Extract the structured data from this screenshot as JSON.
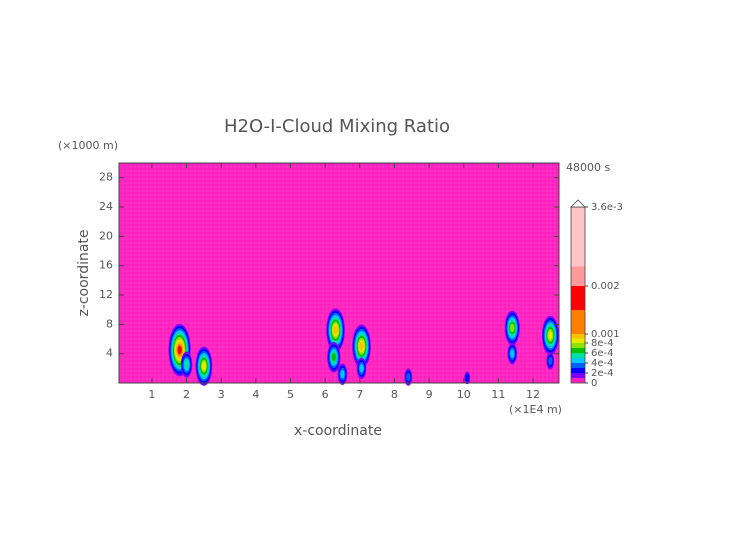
{
  "chart_data": {
    "type": "contour",
    "title": "H2O-I-Cloud Mixing Ratio",
    "y_unit": "(×1000 m)",
    "x_unit": "(×1E4 m)",
    "time_label": "48000 s",
    "ylabel": "z-coordinate",
    "xlabel": "x-coordinate",
    "xlim": [
      0.05,
      12.75
    ],
    "ylim": [
      0,
      30
    ],
    "xticks": [
      1,
      2,
      3,
      4,
      5,
      6,
      7,
      8,
      9,
      10,
      11,
      12
    ],
    "yticks": [
      4,
      8,
      12,
      16,
      20,
      24,
      28
    ],
    "levels": [
      0,
      0.0001,
      0.0002,
      0.0003,
      0.0004,
      0.0005,
      0.0006,
      0.0007,
      0.0008,
      0.0009,
      0.001,
      0.0015,
      0.002,
      0.0024,
      0.0036
    ],
    "colors": [
      "#ff1fbf",
      "#7a00ff",
      "#0000ff",
      "#0060ff",
      "#00c8ff",
      "#00e0a0",
      "#00c000",
      "#90e000",
      "#e8e800",
      "#ffc000",
      "#ff8000",
      "#ff0000",
      "#ff9a9a",
      "#ffc4c4"
    ],
    "colorbar_ticks": [
      0,
      {
        "value": 0.0002,
        "label": "2e-4"
      },
      {
        "value": 0.0004,
        "label": "4e-4"
      },
      {
        "value": 0.0006,
        "label": "6e-4"
      },
      {
        "value": 0.0008,
        "label": "8e-4"
      },
      0.001,
      0.002,
      {
        "value": 0.0036,
        "label": "3.6e-3"
      }
    ],
    "features": [
      {
        "x": 1.8,
        "z": 4.5,
        "peak": 0.0016
      },
      {
        "x": 2.0,
        "z": 2.5,
        "peak": 0.0005
      },
      {
        "x": 2.5,
        "z": 2.3,
        "peak": 0.0008
      },
      {
        "x": 6.3,
        "z": 7.2,
        "peak": 0.0009
      },
      {
        "x": 6.25,
        "z": 3.5,
        "peak": 0.0006
      },
      {
        "x": 6.5,
        "z": 1.2,
        "peak": 0.0004
      },
      {
        "x": 7.05,
        "z": 5,
        "peak": 0.0009
      },
      {
        "x": 7.05,
        "z": 2,
        "peak": 0.0004
      },
      {
        "x": 8.4,
        "z": 0.8,
        "peak": 0.0003
      },
      {
        "x": 10.1,
        "z": 0.7,
        "peak": 0.0002
      },
      {
        "x": 11.4,
        "z": 7.5,
        "peak": 0.0007
      },
      {
        "x": 11.4,
        "z": 4,
        "peak": 0.0004
      },
      {
        "x": 12.5,
        "z": 6.5,
        "peak": 0.0008
      },
      {
        "x": 12.5,
        "z": 3,
        "peak": 0.0003
      }
    ]
  }
}
